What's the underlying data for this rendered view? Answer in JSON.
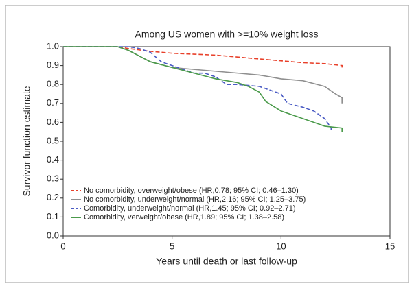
{
  "chart_data": {
    "type": "line",
    "title": "Among US women with >=10% weight loss",
    "x_label": "Years until death or last follow-up",
    "y_label": "Survivor function estimate",
    "xlim": [
      0,
      15
    ],
    "xticks": [
      0,
      5,
      10,
      15
    ],
    "ylim": [
      0,
      1
    ],
    "yticks": [
      {
        "value": 0,
        "label": "0.0"
      },
      0.1,
      0.2,
      0.3,
      0.4,
      0.5,
      0.6,
      0.7,
      0.8,
      0.9,
      {
        "value": 1,
        "label": "1.0"
      }
    ],
    "legend": "lower left",
    "series": [
      {
        "name": "No comorbidity, overweight/obese (HR,0.78; 95% CI; 0.46–1.30)",
        "color": "#e8402a",
        "style": "dashed",
        "x": [
          0,
          2.5,
          3,
          4,
          5,
          6,
          7,
          8,
          9,
          10,
          11,
          12,
          12.8,
          12.8
        ],
        "values": [
          1.0,
          1.0,
          0.99,
          0.975,
          0.965,
          0.96,
          0.955,
          0.945,
          0.935,
          0.925,
          0.915,
          0.91,
          0.9,
          0.89
        ]
      },
      {
        "name": "No comorbidity, underweight/normal (HR,2.16; 95% CI; 1.25–3.75)",
        "color": "#8f8f8f",
        "style": "solid",
        "x": [
          0,
          2.5,
          3,
          3.5,
          4,
          5,
          6,
          7,
          8,
          9,
          10,
          11,
          12,
          12.5,
          12.8,
          12.8
        ],
        "values": [
          1.0,
          1.0,
          0.98,
          0.95,
          0.92,
          0.89,
          0.88,
          0.87,
          0.86,
          0.85,
          0.83,
          0.82,
          0.79,
          0.75,
          0.73,
          0.7
        ]
      },
      {
        "name": "Comorbidity, underweight/normal (HR,1.45; 95% CI; 0.92–2.71)",
        "color": "#4a5bc4",
        "style": "dashed",
        "x": [
          0,
          3,
          3.5,
          4,
          4.5,
          5,
          6,
          6.5,
          7,
          7.5,
          8,
          9,
          10,
          10.3,
          11,
          11.5,
          12,
          12.3,
          12.3
        ],
        "values": [
          1.0,
          1.0,
          0.99,
          0.97,
          0.92,
          0.9,
          0.86,
          0.86,
          0.84,
          0.8,
          0.8,
          0.79,
          0.75,
          0.7,
          0.68,
          0.66,
          0.62,
          0.57,
          0.56
        ]
      },
      {
        "name": "Comorbidity, verweight/obese (HR,1.89; 95% CI; 1.38–2.58)",
        "color": "#4a9a4a",
        "style": "solid",
        "x": [
          0,
          2.5,
          3,
          3.5,
          4,
          5,
          6,
          7,
          8,
          8.5,
          9,
          9.3,
          10,
          10.5,
          11,
          11.5,
          12,
          12.8,
          12.8
        ],
        "values": [
          1.0,
          1.0,
          0.98,
          0.95,
          0.92,
          0.89,
          0.86,
          0.83,
          0.81,
          0.79,
          0.76,
          0.71,
          0.66,
          0.64,
          0.62,
          0.6,
          0.58,
          0.57,
          0.55
        ]
      }
    ]
  }
}
